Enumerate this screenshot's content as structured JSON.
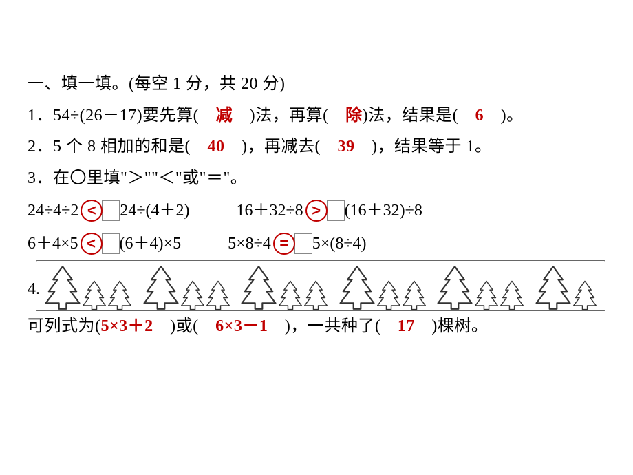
{
  "colors": {
    "text": "#000000",
    "answer": "#c00000",
    "circle_stroke": "#c00000",
    "background": "#ffffff",
    "tree_stroke": "#333333",
    "tree_fill": "#ffffff",
    "frame_stroke": "#666666"
  },
  "title": "一、填一填。(每空 1 分，共 20 分)",
  "q1": {
    "prefix": "1．54÷(26－17)要先算(　",
    "a1": "减",
    "mid1": "　)法，再算(　",
    "a2": "除",
    "mid2": ")法，结果是(　",
    "a3": "6",
    "suffix": "　)。"
  },
  "q2": {
    "prefix": "2．5 个 8 相加的和是(　",
    "a1": "40",
    "mid1": "　)，再减去(　",
    "a2": "39",
    "suffix": "　)，结果等于 1。"
  },
  "q3": {
    "prompt_p1": "3．在",
    "prompt_oval": "〇",
    "prompt_p2": "里填\"＞\"\"＜\"或\"＝\"。",
    "rows": [
      {
        "left": "24÷4÷2",
        "sym": "<",
        "right": "24÷(4＋2)",
        "left2": "16＋32÷8",
        "sym2": ">",
        "right2": "(16＋32)÷8"
      },
      {
        "left": "6＋4×5",
        "sym": "<",
        "right": "(6＋4)×5",
        "left2": "5×8÷4",
        "sym2": "=",
        "right2": "5×(8÷4)"
      }
    ]
  },
  "q4": {
    "num": "4.",
    "trees": {
      "groups": 5,
      "big_per_group": 1,
      "small_per_group": 2,
      "extra_big": 1,
      "extra_small": 1
    },
    "line2_prefix": "可列式为(",
    "a1": "5×3＋2",
    "mid1": "　)或(　",
    "a2": "6×3－1",
    "mid2": "　)，一共种了(　",
    "a3": "17",
    "suffix": "　)棵树。"
  }
}
